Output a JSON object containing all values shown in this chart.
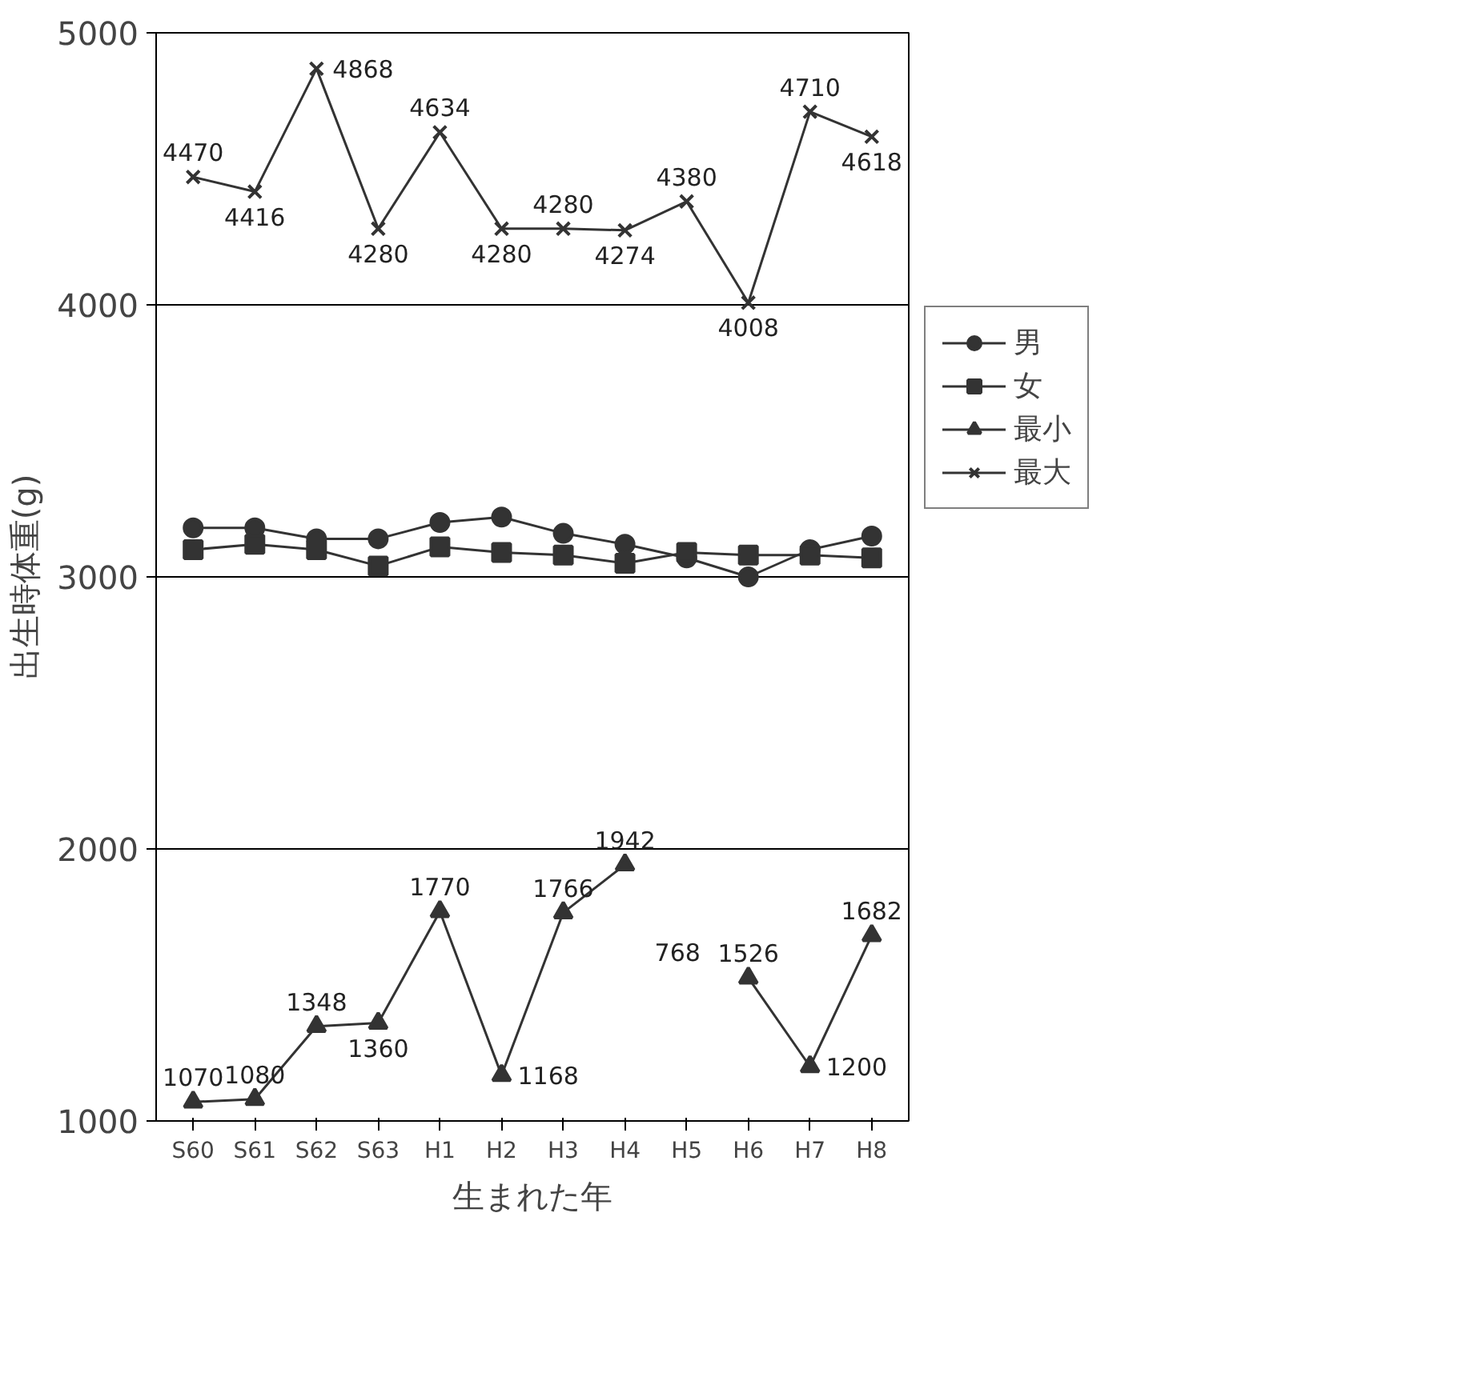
{
  "chart_data": {
    "type": "line",
    "xlabel": "生まれた年",
    "ylabel": "出生時体重(g)",
    "categories": [
      "S60",
      "S61",
      "S62",
      "S63",
      "H1",
      "H2",
      "H3",
      "H4",
      "H5",
      "H6",
      "H7",
      "H8"
    ],
    "ylim": [
      1000,
      5000
    ],
    "annotations": [
      "768"
    ],
    "yticks": [
      1000,
      2000,
      3000,
      4000,
      5000
    ],
    "grid": "y",
    "legend": "right",
    "series": [
      {
        "name": "男",
        "color": "#333333",
        "marker": "circle",
        "values": [
          3180,
          3180,
          3140,
          3140,
          3200,
          3220,
          3160,
          3120,
          3070,
          3000,
          3100,
          3150
        ]
      },
      {
        "name": "女",
        "color": "#333333",
        "marker": "square",
        "values": [
          3100,
          3120,
          3100,
          3040,
          3110,
          3090,
          3080,
          3050,
          3090,
          3080,
          3080,
          3070
        ]
      },
      {
        "name": "最小",
        "color": "#333333",
        "marker": "triangle",
        "values": [
          1070,
          1080,
          1348,
          1360,
          1770,
          1168,
          1766,
          1942,
          null,
          1526,
          1200,
          1682
        ],
        "value_labels": [
          "1070",
          "1080",
          "1348",
          "1360",
          "1770",
          "1168",
          "1766",
          "1942",
          null,
          "1526",
          "1200",
          "1682"
        ]
      },
      {
        "name": "最大",
        "color": "#333333",
        "marker": "cross",
        "values": [
          4470,
          4416,
          4868,
          4280,
          4634,
          4280,
          4280,
          4274,
          4380,
          4008,
          4710,
          4618
        ],
        "value_labels": [
          "4470",
          "4416",
          "4868",
          "4280",
          "4634",
          "4280",
          "4280",
          "4274",
          "4380",
          "4008",
          "4710",
          "4618"
        ]
      }
    ]
  }
}
